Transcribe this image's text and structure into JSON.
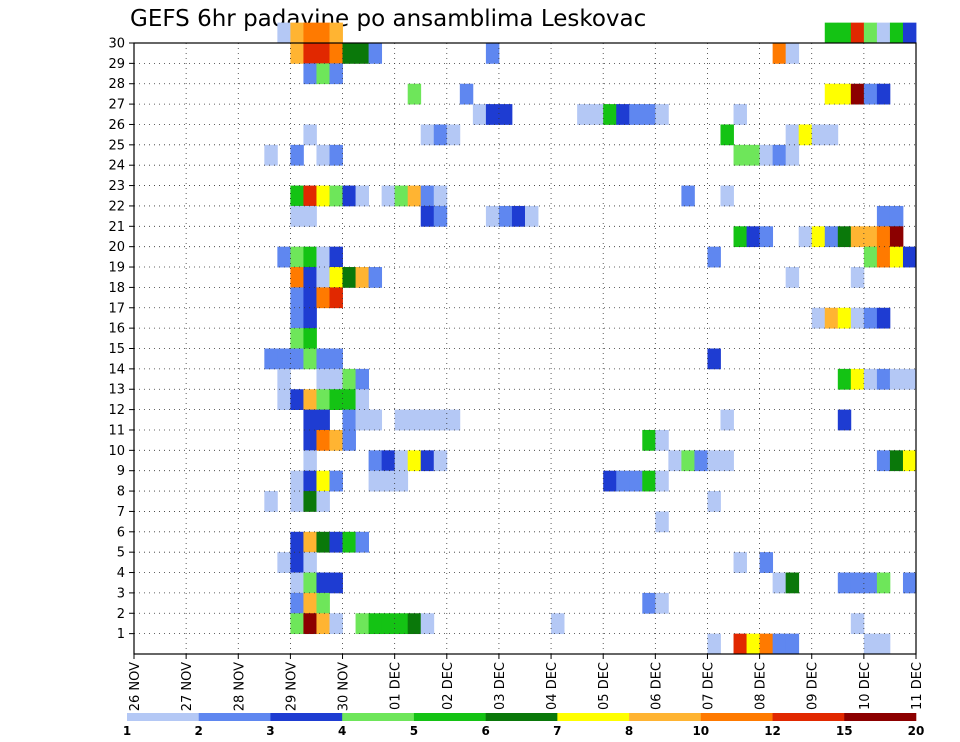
{
  "chart_data": {
    "type": "heatmap",
    "title": "GEFS 6hr padavine po ansamblima Leskovac",
    "xlabel": "",
    "ylabel": "",
    "x_ticks": [
      "26 NOV",
      "27 NOV",
      "28 NOV",
      "29 NOV",
      "30 NOV",
      "01 DEC",
      "02 DEC",
      "03 DEC",
      "04 DEC",
      "05 DEC",
      "06 DEC",
      "07 DEC",
      "08 DEC",
      "09 DEC",
      "10 DEC",
      "11 DEC"
    ],
    "y_ticks": [
      "1",
      "2",
      "3",
      "4",
      "5",
      "6",
      "7",
      "8",
      "9",
      "10",
      "11",
      "12",
      "13",
      "14",
      "15",
      "16",
      "17",
      "18",
      "19",
      "20",
      "21",
      "22",
      "23",
      "24",
      "25",
      "26",
      "27",
      "28",
      "29",
      "30"
    ],
    "x_range": [
      "26 NOV 00UTC",
      "11 DEC 00UTC"
    ],
    "x_step": "6hr",
    "members_range": [
      0,
      30
    ],
    "grid": true,
    "color_levels": [
      1,
      2,
      3,
      4,
      5,
      6,
      7,
      8,
      10,
      12,
      15,
      20
    ],
    "color_labels": [
      "1",
      "2",
      "3",
      "4",
      "5",
      "6",
      "7",
      "8",
      "10",
      "12",
      "15",
      "20"
    ],
    "colors": [
      "#b4c8f5",
      "#5f87f0",
      "#1e3cd2",
      "#6ee65a",
      "#14c314",
      "#0a780a",
      "#ffff00",
      "#ffb432",
      "#ff7a00",
      "#e12800",
      "#8c0000"
    ],
    "cells": [
      [
        30,
        11,
        1
      ],
      [
        30,
        12,
        8
      ],
      [
        30,
        13,
        9
      ],
      [
        30,
        14,
        9
      ],
      [
        30,
        15,
        8
      ],
      [
        30,
        53,
        5
      ],
      [
        30,
        54,
        5
      ],
      [
        30,
        55,
        10
      ],
      [
        30,
        56,
        4
      ],
      [
        30,
        57,
        1
      ],
      [
        30,
        58,
        5
      ],
      [
        30,
        59,
        3
      ],
      [
        29,
        12,
        8
      ],
      [
        29,
        13,
        10
      ],
      [
        29,
        14,
        10
      ],
      [
        29,
        15,
        9
      ],
      [
        29,
        16,
        6
      ],
      [
        29,
        17,
        6
      ],
      [
        29,
        18,
        2
      ],
      [
        29,
        27,
        2
      ],
      [
        29,
        49,
        9
      ],
      [
        29,
        50,
        1
      ],
      [
        28,
        13,
        2
      ],
      [
        28,
        14,
        4
      ],
      [
        28,
        15,
        2
      ],
      [
        27,
        21,
        4
      ],
      [
        27,
        25,
        2
      ],
      [
        27,
        53,
        7
      ],
      [
        27,
        54,
        7
      ],
      [
        27,
        55,
        11
      ],
      [
        27,
        56,
        2
      ],
      [
        27,
        57,
        3
      ],
      [
        26,
        26,
        1
      ],
      [
        26,
        27,
        3
      ],
      [
        26,
        28,
        3
      ],
      [
        26,
        34,
        1
      ],
      [
        26,
        35,
        1
      ],
      [
        26,
        36,
        5
      ],
      [
        26,
        37,
        3
      ],
      [
        26,
        38,
        2
      ],
      [
        26,
        39,
        2
      ],
      [
        26,
        40,
        1
      ],
      [
        26,
        46,
        1
      ],
      [
        25,
        13,
        1
      ],
      [
        25,
        22,
        1
      ],
      [
        25,
        23,
        2
      ],
      [
        25,
        24,
        1
      ],
      [
        25,
        45,
        5
      ],
      [
        25,
        50,
        1
      ],
      [
        25,
        51,
        7
      ],
      [
        25,
        52,
        1
      ],
      [
        25,
        53,
        1
      ],
      [
        24,
        10,
        1
      ],
      [
        24,
        12,
        2
      ],
      [
        24,
        14,
        1
      ],
      [
        24,
        15,
        2
      ],
      [
        24,
        46,
        4
      ],
      [
        24,
        47,
        4
      ],
      [
        24,
        48,
        1
      ],
      [
        24,
        49,
        2
      ],
      [
        24,
        50,
        1
      ],
      [
        22,
        12,
        5
      ],
      [
        22,
        13,
        10
      ],
      [
        22,
        14,
        7
      ],
      [
        22,
        15,
        4
      ],
      [
        22,
        16,
        3
      ],
      [
        22,
        17,
        1
      ],
      [
        22,
        19,
        1
      ],
      [
        22,
        20,
        4
      ],
      [
        22,
        21,
        8
      ],
      [
        22,
        22,
        2
      ],
      [
        22,
        23,
        1
      ],
      [
        22,
        42,
        2
      ],
      [
        22,
        45,
        1
      ],
      [
        21,
        12,
        1
      ],
      [
        21,
        13,
        1
      ],
      [
        21,
        22,
        3
      ],
      [
        21,
        23,
        2
      ],
      [
        21,
        27,
        1
      ],
      [
        21,
        28,
        2
      ],
      [
        21,
        29,
        3
      ],
      [
        21,
        30,
        1
      ],
      [
        21,
        57,
        2
      ],
      [
        21,
        58,
        2
      ],
      [
        20,
        46,
        5
      ],
      [
        20,
        47,
        3
      ],
      [
        20,
        48,
        2
      ],
      [
        20,
        51,
        1
      ],
      [
        20,
        52,
        7
      ],
      [
        20,
        53,
        2
      ],
      [
        20,
        54,
        6
      ],
      [
        20,
        55,
        8
      ],
      [
        20,
        56,
        8
      ],
      [
        20,
        57,
        9
      ],
      [
        20,
        58,
        11
      ],
      [
        19,
        11,
        2
      ],
      [
        19,
        12,
        4
      ],
      [
        19,
        13,
        5
      ],
      [
        19,
        14,
        1
      ],
      [
        19,
        15,
        3
      ],
      [
        19,
        44,
        2
      ],
      [
        19,
        56,
        4
      ],
      [
        19,
        57,
        9
      ],
      [
        19,
        58,
        7
      ],
      [
        19,
        59,
        3
      ],
      [
        18,
        12,
        9
      ],
      [
        18,
        13,
        3
      ],
      [
        18,
        14,
        1
      ],
      [
        18,
        15,
        7
      ],
      [
        18,
        16,
        6
      ],
      [
        18,
        17,
        8
      ],
      [
        18,
        18,
        2
      ],
      [
        18,
        50,
        1
      ],
      [
        18,
        55,
        1
      ],
      [
        17,
        12,
        2
      ],
      [
        17,
        13,
        3
      ],
      [
        17,
        14,
        9
      ],
      [
        17,
        15,
        10
      ],
      [
        16,
        12,
        2
      ],
      [
        16,
        13,
        3
      ],
      [
        16,
        52,
        1
      ],
      [
        16,
        53,
        8
      ],
      [
        16,
        54,
        7
      ],
      [
        16,
        55,
        1
      ],
      [
        16,
        56,
        2
      ],
      [
        16,
        57,
        3
      ],
      [
        15,
        12,
        4
      ],
      [
        15,
        13,
        5
      ],
      [
        14,
        10,
        2
      ],
      [
        14,
        11,
        2
      ],
      [
        14,
        12,
        2
      ],
      [
        14,
        13,
        4
      ],
      [
        14,
        14,
        2
      ],
      [
        14,
        15,
        2
      ],
      [
        14,
        44,
        3
      ],
      [
        13,
        11,
        1
      ],
      [
        13,
        14,
        1
      ],
      [
        13,
        15,
        1
      ],
      [
        13,
        16,
        4
      ],
      [
        13,
        17,
        2
      ],
      [
        13,
        54,
        5
      ],
      [
        13,
        55,
        7
      ],
      [
        13,
        56,
        1
      ],
      [
        13,
        57,
        2
      ],
      [
        13,
        58,
        1
      ],
      [
        13,
        59,
        1
      ],
      [
        12,
        11,
        1
      ],
      [
        12,
        12,
        3
      ],
      [
        12,
        13,
        8
      ],
      [
        12,
        14,
        4
      ],
      [
        12,
        15,
        5
      ],
      [
        12,
        16,
        5
      ],
      [
        12,
        17,
        1
      ],
      [
        11,
        13,
        3
      ],
      [
        11,
        14,
        3
      ],
      [
        11,
        16,
        2
      ],
      [
        11,
        17,
        1
      ],
      [
        11,
        18,
        1
      ],
      [
        11,
        20,
        1
      ],
      [
        11,
        21,
        1
      ],
      [
        11,
        22,
        1
      ],
      [
        11,
        23,
        1
      ],
      [
        11,
        24,
        1
      ],
      [
        11,
        45,
        1
      ],
      [
        11,
        54,
        3
      ],
      [
        10,
        13,
        3
      ],
      [
        10,
        14,
        9
      ],
      [
        10,
        15,
        8
      ],
      [
        10,
        16,
        2
      ],
      [
        10,
        39,
        5
      ],
      [
        10,
        40,
        1
      ],
      [
        9,
        13,
        1
      ],
      [
        9,
        18,
        2
      ],
      [
        9,
        19,
        3
      ],
      [
        9,
        20,
        1
      ],
      [
        9,
        21,
        7
      ],
      [
        9,
        22,
        3
      ],
      [
        9,
        23,
        1
      ],
      [
        9,
        41,
        1
      ],
      [
        9,
        42,
        4
      ],
      [
        9,
        43,
        2
      ],
      [
        9,
        44,
        1
      ],
      [
        9,
        45,
        1
      ],
      [
        9,
        57,
        2
      ],
      [
        9,
        58,
        6
      ],
      [
        9,
        59,
        7
      ],
      [
        8,
        12,
        1
      ],
      [
        8,
        13,
        3
      ],
      [
        8,
        14,
        7
      ],
      [
        8,
        15,
        2
      ],
      [
        8,
        18,
        1
      ],
      [
        8,
        19,
        1
      ],
      [
        8,
        20,
        1
      ],
      [
        8,
        36,
        3
      ],
      [
        8,
        37,
        2
      ],
      [
        8,
        38,
        2
      ],
      [
        8,
        39,
        5
      ],
      [
        8,
        40,
        1
      ],
      [
        7,
        10,
        1
      ],
      [
        7,
        12,
        1
      ],
      [
        7,
        13,
        6
      ],
      [
        7,
        14,
        1
      ],
      [
        7,
        44,
        1
      ],
      [
        6,
        40,
        1
      ],
      [
        5,
        12,
        3
      ],
      [
        5,
        13,
        8
      ],
      [
        5,
        14,
        6
      ],
      [
        5,
        15,
        3
      ],
      [
        5,
        16,
        5
      ],
      [
        5,
        17,
        2
      ],
      [
        4,
        11,
        1
      ],
      [
        4,
        12,
        3
      ],
      [
        4,
        13,
        1
      ],
      [
        4,
        46,
        1
      ],
      [
        4,
        48,
        2
      ],
      [
        3,
        12,
        1
      ],
      [
        3,
        13,
        4
      ],
      [
        3,
        14,
        3
      ],
      [
        3,
        15,
        3
      ],
      [
        3,
        49,
        1
      ],
      [
        3,
        50,
        6
      ],
      [
        3,
        54,
        2
      ],
      [
        3,
        55,
        2
      ],
      [
        3,
        56,
        2
      ],
      [
        3,
        57,
        4
      ],
      [
        3,
        59,
        2
      ],
      [
        2,
        12,
        2
      ],
      [
        2,
        13,
        8
      ],
      [
        2,
        14,
        4
      ],
      [
        2,
        39,
        2
      ],
      [
        2,
        40,
        1
      ],
      [
        1,
        12,
        4
      ],
      [
        1,
        13,
        11
      ],
      [
        1,
        14,
        8
      ],
      [
        1,
        15,
        1
      ],
      [
        1,
        17,
        4
      ],
      [
        1,
        18,
        5
      ],
      [
        1,
        19,
        5
      ],
      [
        1,
        20,
        5
      ],
      [
        1,
        21,
        6
      ],
      [
        1,
        22,
        1
      ],
      [
        1,
        32,
        1
      ],
      [
        1,
        55,
        1
      ],
      [
        0,
        44,
        1
      ],
      [
        0,
        46,
        10
      ],
      [
        0,
        47,
        7
      ],
      [
        0,
        48,
        9
      ],
      [
        0,
        49,
        2
      ],
      [
        0,
        50,
        2
      ],
      [
        0,
        56,
        1
      ],
      [
        0,
        57,
        1
      ]
    ]
  }
}
